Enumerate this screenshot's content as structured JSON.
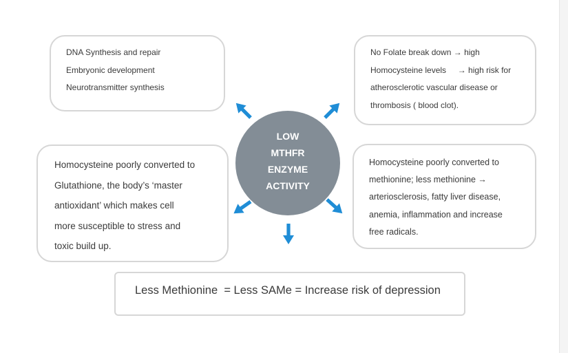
{
  "center": {
    "lines": [
      "LOW",
      "MTHFR",
      "ENZYME",
      "ACTIVITY"
    ]
  },
  "boxes": {
    "top_left": {
      "lines": [
        "DNA Synthesis and repair",
        "Embryonic development",
        "Neurotransmitter synthesis"
      ]
    },
    "top_right": {
      "lines": [
        "No Folate break down → high",
        "Homocysteine levels     → high risk for",
        "atherosclerotic vascular disease or",
        "thrombosis ( blood clot)."
      ]
    },
    "mid_left": {
      "lines": [
        "Homocysteine poorly converted to",
        "Glutathione, the body’s ‘master",
        "antioxidant’ which makes cell",
        "more susceptible to stress and",
        "toxic build up."
      ]
    },
    "mid_right": {
      "lines": [
        "Homocysteine poorly converted to",
        "methionine; less methionine →",
        "arteriosclerosis, fatty liver disease,",
        "anemia, inflammation and increase",
        "free radicals."
      ]
    },
    "bottom": {
      "text": "Less Methionine  = Less SAMe = Increase risk of depression"
    }
  },
  "colors": {
    "arrow": "#1f8dd6",
    "circle": "#838d96",
    "box_border": "#d6d6d6"
  }
}
